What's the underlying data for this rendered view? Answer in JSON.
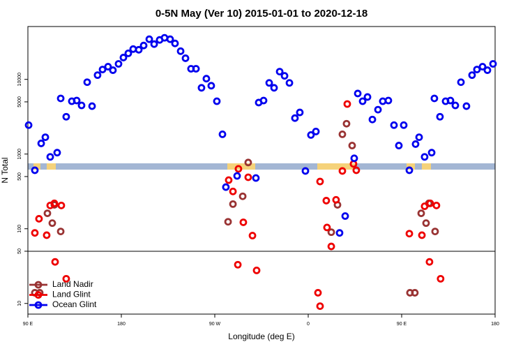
{
  "chart_data": {
    "type": "scatter",
    "title": "0-5N May (Ver 10)   2015-01-01 to 2020-12-18",
    "xlabel": "Longitude (deg E)",
    "ylabel": "N Total",
    "xlim": [
      90,
      540
    ],
    "xticks": [
      {
        "value": 90,
        "label": "90 E"
      },
      180,
      {
        "value": 270,
        "label": "90 W"
      },
      {
        "value": 360,
        "label": "0"
      },
      {
        "value": 450,
        "label": "90 E"
      },
      {
        "value": 540,
        "label": "180"
      }
    ],
    "ylim": [
      7.2,
      51000
    ],
    "yscale": "log",
    "yticks": [
      10,
      50,
      100,
      500,
      1000,
      5000,
      10000
    ],
    "panel_split": 50,
    "legend": "lower left",
    "series": [
      {
        "name": "Land Nadir",
        "color": "#993333",
        "x": [
          108.8,
          113.5,
          115.5,
          121.6,
          96.7,
          101.4,
          302.2,
          296.9,
          287.5,
          282.8,
          396.9,
          392.9,
          402.3,
          388.2,
          382.2,
          468.8,
          473.5,
          476.2,
          482.2,
          458,
          462.7
        ],
        "values": [
          161,
          119,
          209,
          92,
          13.9,
          13.9,
          771,
          272,
          214,
          124,
          2550,
          1840,
          1300,
          209,
          90,
          161,
          119,
          219,
          92,
          13.9,
          13.9
        ]
      },
      {
        "name": "Land Glint",
        "color": "#ee0000",
        "x": [
          96.7,
          100.7,
          108.1,
          111.5,
          115.5,
          122.2,
          116.2,
          126.9,
          283.4,
          287.5,
          292.8,
          297.5,
          302.2,
          306.3,
          292.2,
          310.3,
          371.4,
          377.4,
          386.8,
          378.1,
          382.2,
          392.9,
          397.6,
          403.6,
          406.3,
          369.4,
          371.4,
          457.4,
          469.5,
          472.1,
          477.5,
          483.5,
          476.8,
          487.5
        ],
        "values": [
          88,
          136,
          82,
          205,
          219,
          205,
          36,
          21.4,
          448,
          316,
          634,
          122,
          489,
          81,
          33,
          27.7,
          429,
          238,
          244,
          104,
          58,
          594,
          4680,
          738,
          607,
          13.9,
          9.2,
          86,
          82,
          200,
          219,
          205,
          36,
          21.4
        ]
      },
      {
        "name": "Ocean Glint",
        "color": "#0000ee",
        "x": [
          90.7,
          96.7,
          102.8,
          106.8,
          111.5,
          118.2,
          121.6,
          126.9,
          132.3,
          137,
          141.7,
          147.1,
          151.8,
          157.1,
          161.9,
          167.2,
          171.9,
          177.3,
          182,
          186.7,
          191.4,
          196.8,
          201.5,
          206.9,
          211.6,
          216.9,
          221.6,
          227,
          231.7,
          237.1,
          241.8,
          247.1,
          251.9,
          257.2,
          261.9,
          266.6,
          272,
          277.4,
          280.7,
          291.5,
          309.6,
          312.3,
          317,
          322.4,
          327.1,
          332.5,
          337.2,
          341.9,
          347.2,
          351.9,
          357.3,
          362.6,
          367.4,
          390.2,
          395.6,
          404.3,
          407.7,
          412.4,
          417.1,
          421.8,
          427.2,
          431.8,
          437.2,
          442.6,
          447.3,
          452,
          457.4,
          463.4,
          466.8,
          472.1,
          478.9,
          481.5,
          486.9,
          492.3,
          497,
          501.7,
          507.1,
          512.4,
          517.8,
          522.5,
          527.9,
          532.6,
          538
        ],
        "values": [
          2440,
          607,
          1390,
          1680,
          917,
          1045,
          5560,
          3160,
          5100,
          5210,
          4480,
          9170,
          4380,
          11400,
          13550,
          14790,
          13270,
          16130,
          19600,
          22320,
          25450,
          24900,
          28400,
          34500,
          29660,
          33740,
          36040,
          34500,
          30300,
          23850,
          19180,
          13870,
          13870,
          7710,
          10220,
          8220,
          5100,
          1840,
          361,
          510,
          478,
          4890,
          5210,
          8970,
          7710,
          12700,
          11150,
          8970,
          3030,
          3610,
          594,
          1800,
          2005,
          88,
          148,
          878,
          6470,
          5100,
          5810,
          2900,
          3930,
          5100,
          5210,
          2440,
          1300,
          2440,
          607,
          1360,
          1680,
          917,
          1045,
          5560,
          3160,
          5100,
          5210,
          4480,
          9170,
          4380,
          11400,
          13550,
          14790,
          13270,
          16130
        ]
      }
    ]
  }
}
